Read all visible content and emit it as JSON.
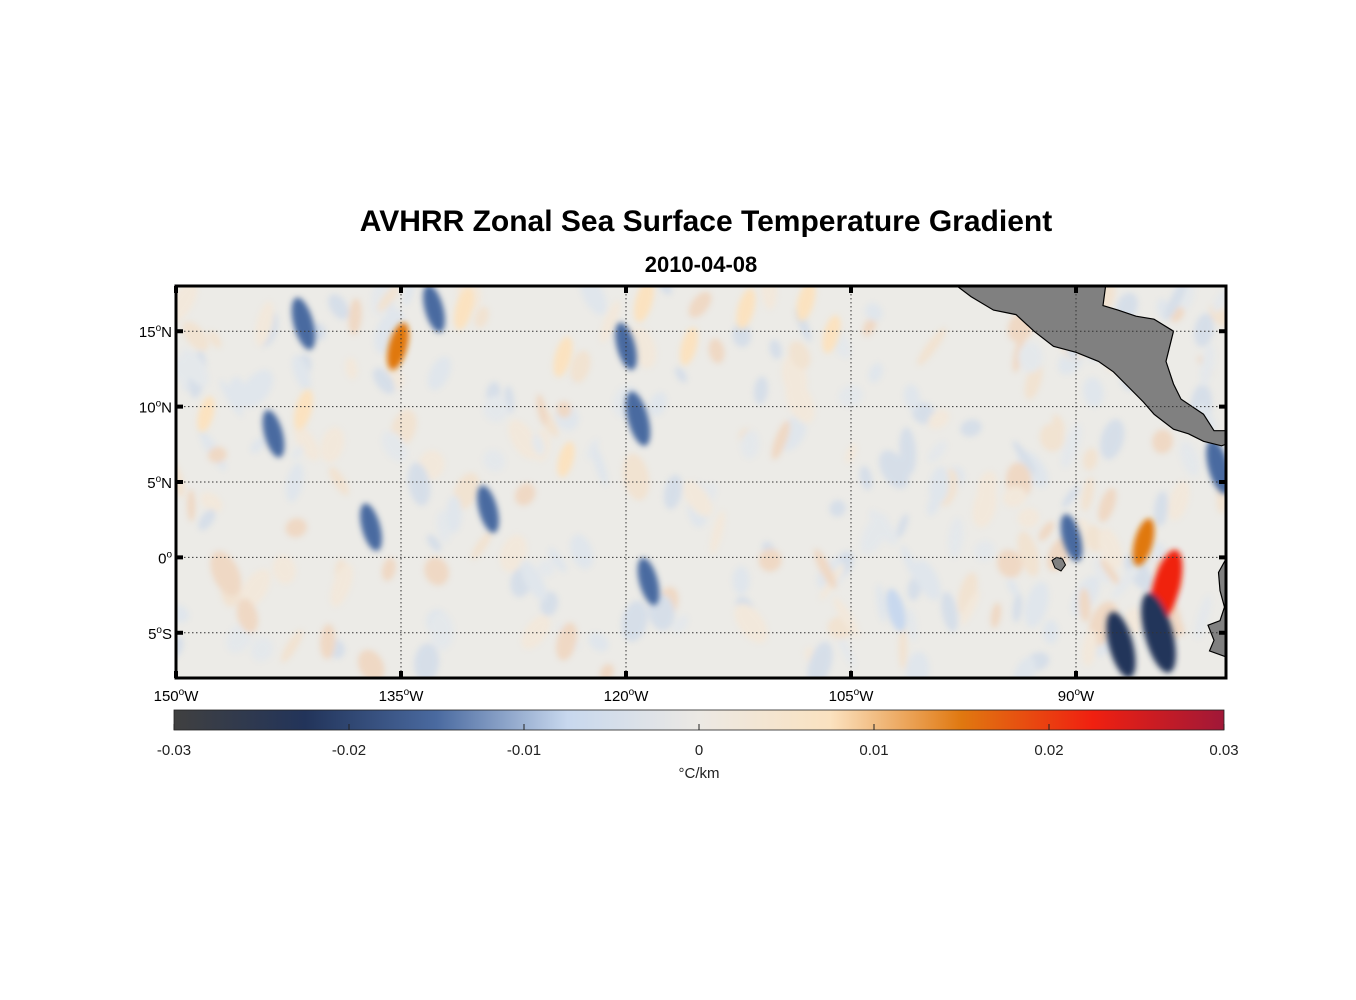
{
  "title": "AVHRR Zonal Sea Surface Temperature Gradient",
  "subtitle": "2010-04-08",
  "map": {
    "lon_range": [
      -150,
      -80
    ],
    "lat_range": [
      -8,
      18
    ],
    "lat_ticks": [
      {
        "value": 15,
        "label": "15",
        "hemi": "N"
      },
      {
        "value": 10,
        "label": "10",
        "hemi": "N"
      },
      {
        "value": 5,
        "label": "5",
        "hemi": "N"
      },
      {
        "value": 0,
        "label": "0",
        "hemi": ""
      },
      {
        "value": -5,
        "label": "5",
        "hemi": "S"
      }
    ],
    "lon_ticks": [
      {
        "value": -150,
        "label": "150",
        "hemi": "W"
      },
      {
        "value": -135,
        "label": "135",
        "hemi": "W"
      },
      {
        "value": -120,
        "label": "120",
        "hemi": "W"
      },
      {
        "value": -105,
        "label": "105",
        "hemi": "W"
      },
      {
        "value": -90,
        "label": "90",
        "hemi": "W"
      }
    ],
    "land_color": "#808080",
    "grid": "dotted"
  },
  "colorbar": {
    "range": [
      -0.03,
      0.03
    ],
    "ticks": [
      "-0.03",
      "-0.02",
      "-0.01",
      "0",
      "0.01",
      "0.02",
      "0.03"
    ],
    "tick_values": [
      -0.03,
      -0.02,
      -0.01,
      0,
      0.01,
      0.02,
      0.03
    ],
    "unit_label": "°C/km",
    "colors": [
      "#404040",
      "#22345a",
      "#4a6aa0",
      "#c8d8ee",
      "#ece9e4",
      "#fbe2c0",
      "#e07810",
      "#f02010",
      "#a01838"
    ]
  },
  "features": [
    {
      "type": "positive",
      "lon": -135.2,
      "lat": 14,
      "value": 0.012
    },
    {
      "type": "positive",
      "lon": -130.8,
      "lat": 16.5,
      "value": 0.01
    },
    {
      "type": "positive",
      "lon": -124.2,
      "lat": 13.3,
      "value": 0.009
    },
    {
      "type": "positive",
      "lon": -118.8,
      "lat": 17,
      "value": 0.01
    },
    {
      "type": "positive",
      "lon": -115.8,
      "lat": 14,
      "value": 0.008
    },
    {
      "type": "positive",
      "lon": -112,
      "lat": 16.5,
      "value": 0.009
    },
    {
      "type": "positive",
      "lon": -108,
      "lat": 17,
      "value": 0.009
    },
    {
      "type": "positive",
      "lon": -106.3,
      "lat": 14.8,
      "value": 0.008
    },
    {
      "type": "positive",
      "lon": -141.5,
      "lat": 9.8,
      "value": 0.009
    },
    {
      "type": "positive",
      "lon": -148,
      "lat": 9.5,
      "value": 0.007
    },
    {
      "type": "positive",
      "lon": -124,
      "lat": 6.5,
      "value": 0.007
    },
    {
      "type": "positive",
      "lon": -84,
      "lat": -2,
      "value": 0.024
    },
    {
      "type": "positive",
      "lon": -85.5,
      "lat": 1,
      "value": 0.012
    },
    {
      "type": "negative",
      "lon": -141.5,
      "lat": 15.5,
      "value": -0.014
    },
    {
      "type": "negative",
      "lon": -143.5,
      "lat": 8.2,
      "value": -0.012
    },
    {
      "type": "negative",
      "lon": -119.2,
      "lat": 9.2,
      "value": -0.015
    },
    {
      "type": "negative",
      "lon": -120,
      "lat": 14,
      "value": -0.012
    },
    {
      "type": "negative",
      "lon": -132.8,
      "lat": 16.5,
      "value": -0.012
    },
    {
      "type": "negative",
      "lon": -129.2,
      "lat": 3.2,
      "value": -0.012
    },
    {
      "type": "negative",
      "lon": -137,
      "lat": 2,
      "value": -0.012
    },
    {
      "type": "negative",
      "lon": -118.5,
      "lat": -1.6,
      "value": -0.012
    },
    {
      "type": "negative",
      "lon": -84.5,
      "lat": -5,
      "value": -0.026
    },
    {
      "type": "negative",
      "lon": -87,
      "lat": -5.8,
      "value": -0.02
    },
    {
      "type": "negative",
      "lon": -90.3,
      "lat": 1.3,
      "value": -0.012
    },
    {
      "type": "negative",
      "lon": -80.5,
      "lat": 6,
      "value": -0.015
    },
    {
      "type": "negative",
      "lon": -102,
      "lat": -3.5,
      "value": -0.01
    }
  ]
}
